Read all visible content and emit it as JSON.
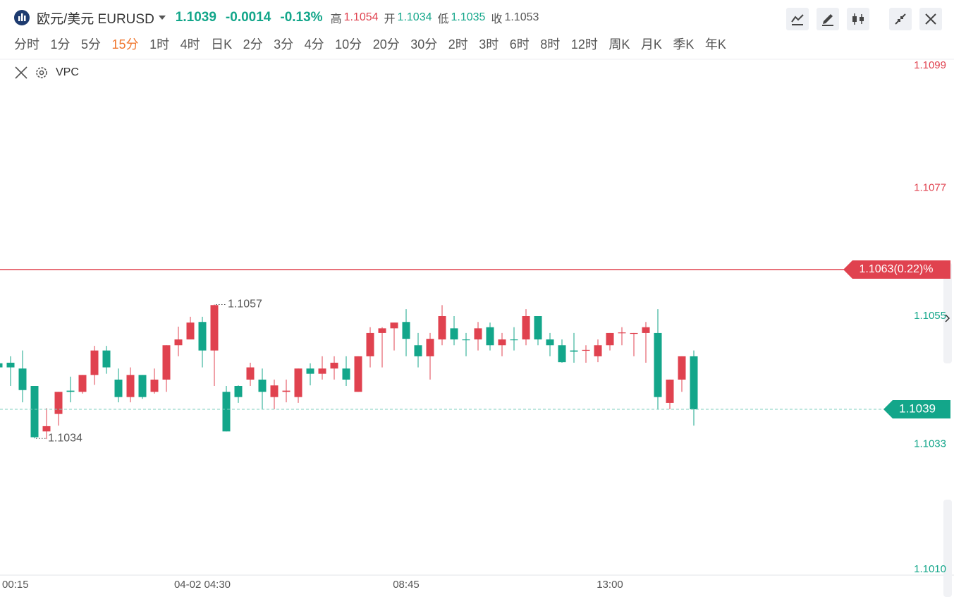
{
  "header": {
    "title": "欧元/美元 EURUSD",
    "price": "1.1039",
    "change": "-0.0014",
    "change_pct": "-0.13%",
    "stats": [
      {
        "label": "高",
        "value": "1.1054"
      },
      {
        "label": "开",
        "value": "1.1034"
      },
      {
        "label": "低",
        "value": "1.1035"
      },
      {
        "label": "收",
        "value": "1.1053"
      }
    ]
  },
  "periods": {
    "items": [
      "分时",
      "1分",
      "5分",
      "15分",
      "1时",
      "4时",
      "日K",
      "2分",
      "3分",
      "4分",
      "10分",
      "20分",
      "30分",
      "2时",
      "3时",
      "6时",
      "8时",
      "12时",
      "周K",
      "月K",
      "季K",
      "年K"
    ],
    "active": 3
  },
  "indicator": "VPC",
  "chart_data": {
    "type": "candlestick",
    "categories": [
      "00:15",
      null,
      null,
      null,
      null,
      null,
      null,
      null,
      null,
      null,
      null,
      null,
      null,
      null,
      null,
      null,
      null,
      "04-02 04:30",
      null,
      null,
      null,
      null,
      null,
      null,
      null,
      null,
      null,
      null,
      null,
      null,
      null,
      null,
      null,
      null,
      "08:45",
      null,
      null,
      null,
      null,
      null,
      null,
      null,
      null,
      null,
      null,
      null,
      null,
      null,
      null,
      null,
      null,
      "13:00",
      null,
      null,
      null,
      null,
      null,
      null,
      null
    ],
    "series": [
      {
        "name": "EURUSD",
        "up_color": "#e0424f",
        "down_color": "#13a68a",
        "open": [
          1.10469,
          1.1047,
          1.1046,
          1.1043,
          1.10352,
          1.10382,
          1.10422,
          1.1042,
          1.10449,
          1.10491,
          1.10441,
          1.10411,
          1.10449,
          1.1042,
          1.10441,
          1.105,
          1.1051,
          1.1054,
          1.10491,
          1.1042,
          1.1043,
          1.10441,
          1.10441,
          1.10411,
          1.1042,
          1.10411,
          1.1046,
          1.10451,
          1.1046,
          1.1046,
          1.1042,
          1.10481,
          1.10521,
          1.10529,
          1.1054,
          1.105,
          1.10481,
          1.1051,
          1.10529,
          1.1051,
          1.1051,
          1.10531,
          1.105,
          1.1051,
          1.1051,
          1.1055,
          1.1051,
          1.105,
          1.10491,
          1.10491,
          1.10481,
          1.105,
          1.10521,
          1.1052,
          1.10521,
          1.10521,
          1.10401,
          1.10441,
          1.10481
        ],
        "high": [
          1.10509,
          1.10481,
          1.10491,
          1.1043,
          1.10392,
          1.1042,
          1.10446,
          1.10449,
          1.10499,
          1.10499,
          1.1046,
          1.10462,
          1.10449,
          1.1046,
          1.105,
          1.10532,
          1.10549,
          1.10549,
          1.1057,
          1.1043,
          1.10431,
          1.1047,
          1.1046,
          1.10441,
          1.10441,
          1.1046,
          1.10469,
          1.10481,
          1.10481,
          1.10481,
          1.10481,
          1.10531,
          1.10531,
          1.10539,
          1.10562,
          1.10521,
          1.10521,
          1.10569,
          1.1055,
          1.10521,
          1.1054,
          1.10539,
          1.10521,
          1.10531,
          1.10562,
          1.1055,
          1.10521,
          1.1051,
          1.10521,
          1.105,
          1.1051,
          1.10521,
          1.10531,
          1.10521,
          1.1054,
          1.10562,
          1.10441,
          1.10481,
          1.10491
        ],
        "low": [
          1.1043,
          1.1043,
          1.10402,
          1.1034,
          1.10339,
          1.10362,
          1.10402,
          1.10417,
          1.10432,
          1.10451,
          1.10402,
          1.10402,
          1.10408,
          1.10417,
          1.1042,
          1.10481,
          1.1051,
          1.10462,
          1.1043,
          1.10352,
          1.10401,
          1.1043,
          1.1039,
          1.1039,
          1.10402,
          1.10401,
          1.10431,
          1.10441,
          1.10441,
          1.1043,
          1.1042,
          1.10462,
          1.10462,
          1.10491,
          1.10481,
          1.10462,
          1.10441,
          1.105,
          1.105,
          1.10481,
          1.10491,
          1.10491,
          1.10481,
          1.10491,
          1.105,
          1.105,
          1.10481,
          1.1047,
          1.1047,
          1.1047,
          1.10471,
          1.10491,
          1.105,
          1.10481,
          1.1047,
          1.1039,
          1.1039,
          1.1042,
          1.10362
        ],
        "close": [
          1.10462,
          1.10462,
          1.10423,
          1.10342,
          1.10361,
          1.1042,
          1.1042,
          1.10449,
          1.10491,
          1.10462,
          1.10411,
          1.10449,
          1.10411,
          1.10441,
          1.105,
          1.1051,
          1.10539,
          1.10491,
          1.10569,
          1.10352,
          1.10411,
          1.10462,
          1.1042,
          1.10431,
          1.10422,
          1.1046,
          1.10451,
          1.1046,
          1.1047,
          1.10441,
          1.10481,
          1.10521,
          1.10529,
          1.10539,
          1.10511,
          1.10481,
          1.10511,
          1.1055,
          1.1051,
          1.10509,
          1.10529,
          1.105,
          1.1051,
          1.10509,
          1.1055,
          1.1051,
          1.105,
          1.10471,
          1.10489,
          1.10492,
          1.105,
          1.10521,
          1.10522,
          1.10521,
          1.10531,
          1.10411,
          1.10441,
          1.10481,
          1.1039
        ]
      }
    ],
    "ylim": [
      1.101,
      1.1099
    ],
    "yticks": [
      1.1099,
      1.1077,
      1.1055,
      1.1033,
      1.101
    ],
    "ytick_labels": [
      "1.1099",
      "1.1077",
      "1.1055",
      "1.1033",
      "1.1010"
    ],
    "ref_line": {
      "value": 1.1063,
      "label": "1.1063(0.22)%"
    },
    "last_price": 1.1039,
    "annotations": [
      {
        "index": 18,
        "field": "high"
      },
      {
        "index": 3,
        "field": "low"
      }
    ],
    "grid": false
  }
}
